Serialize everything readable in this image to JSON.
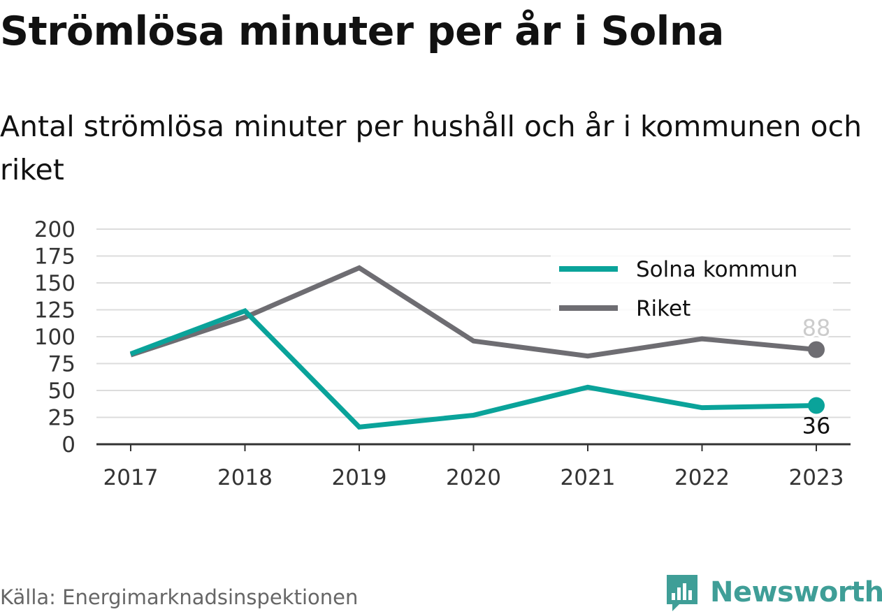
{
  "header": {
    "title": "Strömlösa minuter per år i Solna",
    "subtitle": "Antal strömlösa minuter per hushåll och år i kommunen och riket"
  },
  "footer": {
    "source": "Källa: Energimarknadsinspektionen",
    "brand": "Newsworthy",
    "brand_color": "#3f9e97"
  },
  "chart_data": {
    "type": "line",
    "title": "Strömlösa minuter per år i Solna",
    "subtitle": "Antal strömlösa minuter per hushåll och år i kommunen och riket",
    "xlabel": "",
    "ylabel": "",
    "categories": [
      "2017",
      "2018",
      "2019",
      "2020",
      "2021",
      "2022",
      "2023"
    ],
    "ylim": [
      0,
      200
    ],
    "yticks": [
      "0",
      "25",
      "50",
      "75",
      "100",
      "125",
      "150",
      "175",
      "200"
    ],
    "grid": true,
    "legend_position": "top-right",
    "series": [
      {
        "name": "Solna kommun",
        "color": "#0aa39a",
        "values": [
          84,
          124,
          16,
          27,
          53,
          34,
          36
        ],
        "end_label": "36"
      },
      {
        "name": "Riket",
        "color": "#6e6d72",
        "values": [
          83,
          118,
          164,
          96,
          82,
          98,
          88
        ],
        "end_label": "88"
      }
    ]
  }
}
